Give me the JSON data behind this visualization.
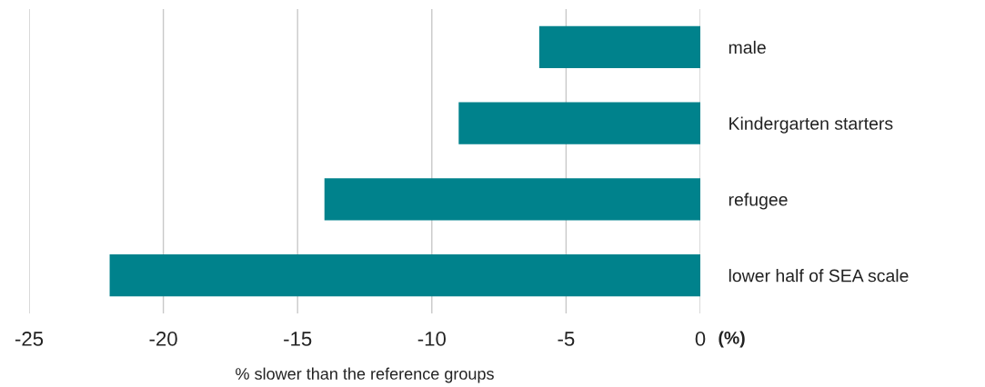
{
  "chart_data": {
    "type": "bar",
    "orientation": "horizontal",
    "categories": [
      "male",
      "Kindergarten starters",
      "refugee",
      "lower half of SEA scale"
    ],
    "values": [
      -6,
      -9,
      -14,
      -22
    ],
    "color": "#00828c",
    "xlim": [
      -25,
      0
    ],
    "xticks": [
      -25,
      -20,
      -15,
      -10,
      -5,
      0
    ],
    "xlabel": "% slower than the reference groups",
    "grid": "x",
    "annotations": [
      "(%)"
    ]
  }
}
